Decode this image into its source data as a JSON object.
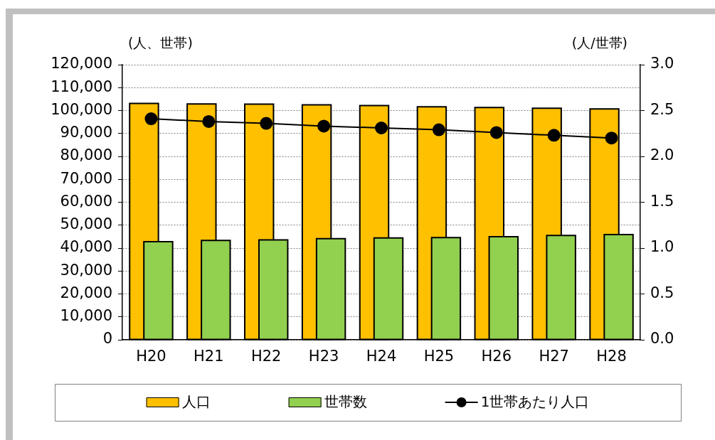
{
  "chart_data": {
    "type": "bar",
    "categories": [
      "H20",
      "H21",
      "H22",
      "H23",
      "H24",
      "H25",
      "H26",
      "H27",
      "H28"
    ],
    "ylabel": "(人、世帯)",
    "y2label": "(人/世帯)",
    "series": [
      {
        "name": "人口",
        "color": "#ffc000",
        "values": [
          103100,
          102900,
          102800,
          102500,
          102200,
          101600,
          101300,
          101000,
          100700
        ]
      },
      {
        "name": "世帯数",
        "color": "#92d050",
        "values": [
          42800,
          43300,
          43600,
          44100,
          44400,
          44600,
          45000,
          45500,
          45900
        ]
      },
      {
        "name": "1世帯あたり人口",
        "type": "line",
        "axis": "y2",
        "color": "#000000",
        "values": [
          2.41,
          2.38,
          2.36,
          2.33,
          2.31,
          2.29,
          2.26,
          2.23,
          2.2
        ]
      }
    ],
    "ylim": [
      0,
      120000
    ],
    "yticks": [
      0,
      {
        "value": 10000,
        "label": "10,000"
      },
      {
        "value": 20000,
        "label": "20,000"
      },
      {
        "value": 30000,
        "label": "30,000"
      },
      {
        "value": 40000,
        "label": "40,000"
      },
      {
        "value": 50000,
        "label": "50,000"
      },
      {
        "value": 60000,
        "label": "60,000"
      },
      {
        "value": 70000,
        "label": "70,000"
      },
      {
        "value": 80000,
        "label": "80,000"
      },
      {
        "value": 90000,
        "label": "90,000"
      },
      {
        "value": 100000,
        "label": "100,000"
      },
      {
        "value": 110000,
        "label": "110,000"
      },
      {
        "value": 120000,
        "label": "120,000"
      }
    ],
    "y2lim": [
      0,
      3
    ],
    "y2ticks": [
      {
        "value": 0,
        "label": "0.0"
      },
      0.5,
      {
        "value": 1,
        "label": "1.0"
      },
      1.5,
      {
        "value": 2,
        "label": "2.0"
      },
      2.5,
      {
        "value": 3,
        "label": "3.0"
      }
    ],
    "grid": "y",
    "legend": "bottom",
    "marker": "circle",
    "line_style": "solid"
  }
}
